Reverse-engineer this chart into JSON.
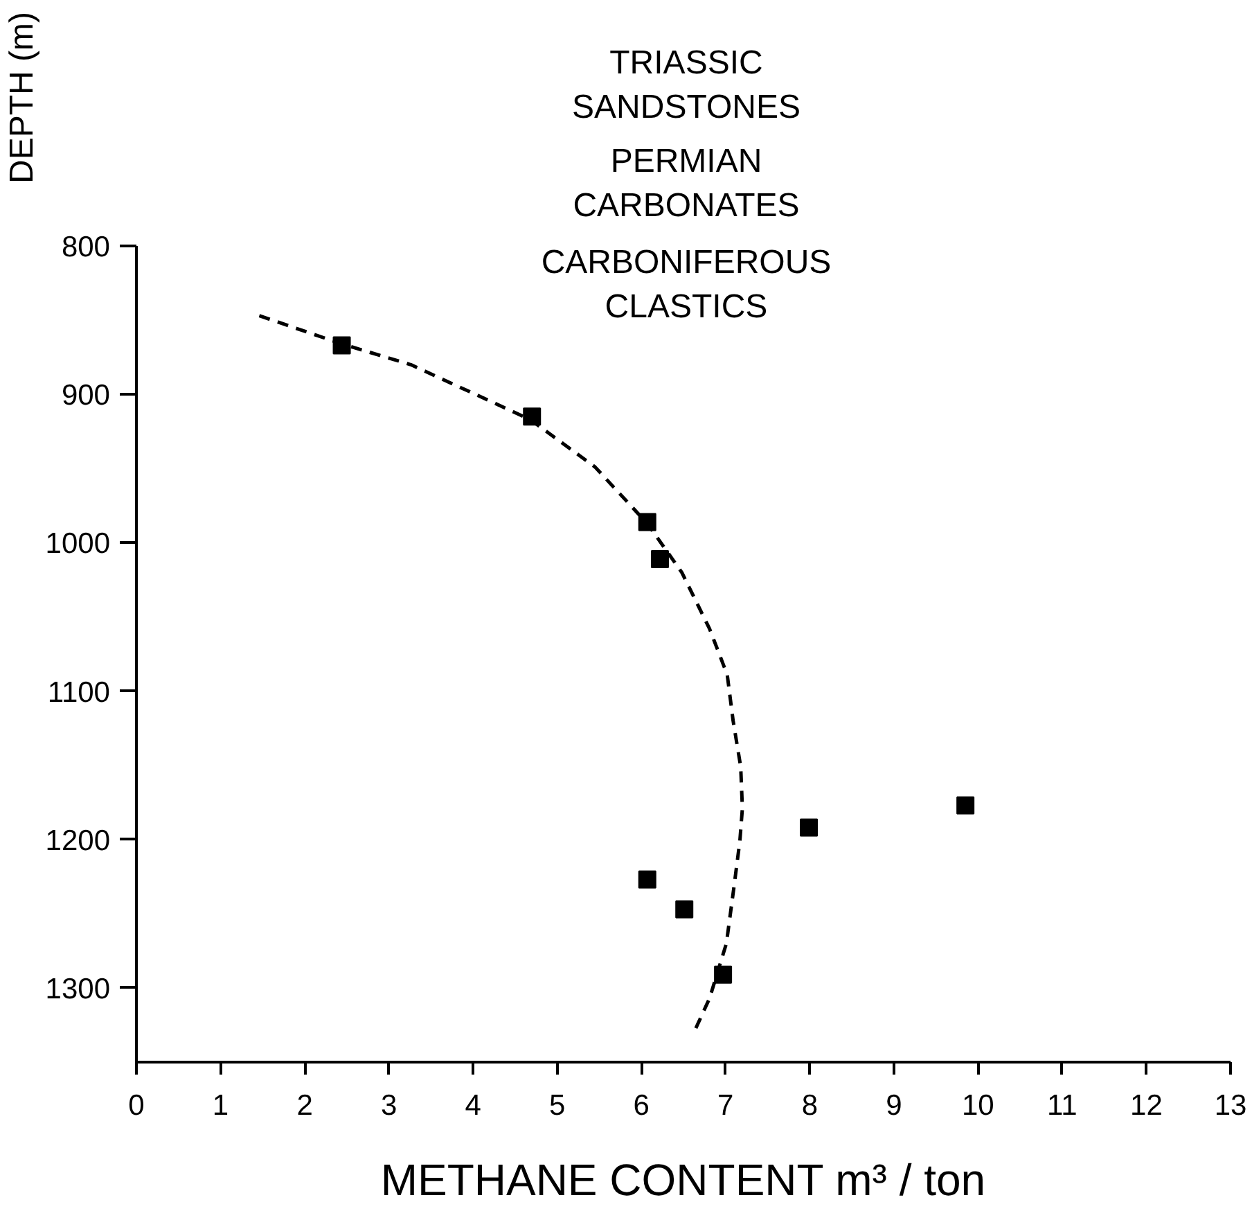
{
  "chart_data": {
    "type": "scatter",
    "xlabel": "METHANE CONTENT m³ / ton",
    "ylabel": "DEPTH (m)",
    "annotations": [
      "TRIASSIC\nSANDSTONES",
      "PERMIAN\nCARBONATES",
      "CARBONIFEROUS\nCLASTICS"
    ],
    "xlim": [
      0,
      13
    ],
    "xticks": [
      0,
      1,
      2,
      3,
      4,
      5,
      6,
      7,
      8,
      9,
      10,
      11,
      12,
      13
    ],
    "ylim": [
      1350,
      800
    ],
    "yticks": [
      800,
      900,
      1000,
      1100,
      1200,
      1300
    ],
    "grid": false,
    "series": [
      {
        "marker": "square",
        "color": "#000000",
        "x": [
          2.44,
          4.7,
          6.07,
          6.22,
          7.99,
          9.85,
          6.07,
          6.51,
          6.97
        ],
        "values": [
          867,
          915,
          986,
          1011,
          1192,
          1177,
          1227,
          1247,
          1291
        ]
      },
      {
        "type": "line",
        "line_style": "dashed",
        "marker": "none",
        "color": "#000000",
        "x": [
          1.46,
          2.44,
          3.26,
          4.68,
          5.45,
          6.07,
          6.48,
          6.81,
          7.02,
          7.09,
          7.18,
          7.2,
          7.17,
          7.1,
          7.01,
          6.81,
          6.64
        ],
        "values": [
          847,
          866,
          880,
          917,
          949,
          987,
          1020,
          1058,
          1089,
          1120,
          1151,
          1179,
          1201,
          1232,
          1270,
          1307,
          1328
        ]
      }
    ]
  }
}
